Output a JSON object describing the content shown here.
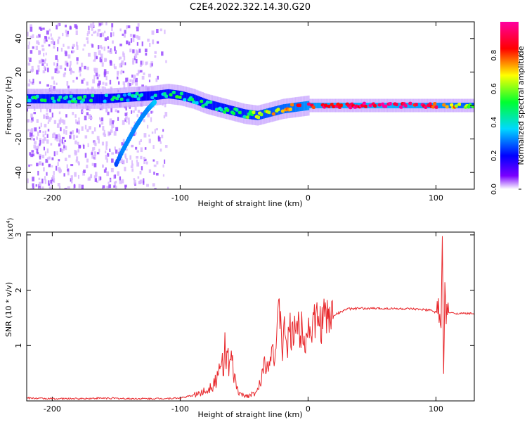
{
  "title": "C2E4.2022.322.14.30.G20",
  "chart_data": [
    {
      "type": "heatmap",
      "xlabel": "Height of straight line (km)",
      "ylabel": "Frequency (Hz)",
      "xlim": [
        -220,
        130
      ],
      "ylim": [
        -50,
        50
      ],
      "xticks": [
        -200,
        -100,
        0,
        100
      ],
      "xtick_labels": [
        "-200",
        "-100",
        "0",
        "100"
      ],
      "yticks": [
        -40,
        -20,
        0,
        20,
        40
      ],
      "ytick_labels": [
        "-40",
        "-20",
        "0",
        "20",
        "40"
      ],
      "colorbar": {
        "label": "Normalized spectral amplitude",
        "range": [
          0,
          1
        ],
        "ticks": [
          0.0,
          0.2,
          0.4,
          0.6,
          0.8
        ],
        "tick_labels": [
          "0.0",
          "0.2",
          "0.4",
          "0.6",
          "0.8"
        ],
        "colors": [
          "#ffffff",
          "#7a00ff",
          "#0000ff",
          "#00d8ff",
          "#00ff30",
          "#ffff00",
          "#ff0000",
          "#ff00a0"
        ]
      },
      "ridge": {
        "x": [
          -220,
          -200,
          -180,
          -160,
          -140,
          -120,
          -110,
          -100,
          -90,
          -80,
          -70,
          -60,
          -50,
          -40,
          -30,
          -20,
          -10,
          0,
          20,
          60,
          100,
          130
        ],
        "freq": [
          4,
          4,
          4,
          4,
          5,
          6,
          7,
          6,
          4,
          1,
          -1,
          -3,
          -5,
          -6,
          -4,
          -2,
          -1,
          0,
          0,
          0,
          0,
          0
        ],
        "amplitude": [
          0.45,
          0.45,
          0.45,
          0.4,
          0.4,
          0.4,
          0.45,
          0.45,
          0.45,
          0.45,
          0.45,
          0.45,
          0.5,
          0.6,
          0.65,
          0.7,
          0.75,
          0.85,
          0.9,
          0.95,
          0.85,
          0.6
        ]
      },
      "branch": {
        "x": [
          -150,
          -145,
          -140,
          -135,
          -130,
          -125,
          -120
        ],
        "freq": [
          -35,
          -27,
          -20,
          -13,
          -7,
          -2,
          2
        ],
        "amplitude": [
          0.25,
          0.3,
          0.3,
          0.3,
          0.3,
          0.3,
          0.35
        ]
      }
    },
    {
      "type": "line",
      "xlabel": "Height of straight line (km)",
      "ylabel": "SNR (10 * v/v)",
      "y_multiplier": "(x10",
      "y_multiplier_exp": "4",
      "y_multiplier_close": ")",
      "xlim": [
        -220,
        130
      ],
      "ylim": [
        0,
        3.05
      ],
      "xticks": [
        -200,
        -100,
        0,
        100
      ],
      "xtick_labels": [
        "-200",
        "-100",
        "0",
        "100"
      ],
      "yticks": [
        1,
        2,
        3
      ],
      "ytick_labels": [
        "1",
        "2",
        "3"
      ],
      "color": "#e8262a",
      "series": [
        {
          "x": [
            -220,
            -200,
            -180,
            -160,
            -140,
            -120,
            -100,
            -90,
            -80,
            -75,
            -70,
            -68,
            -66,
            -64,
            -62,
            -60,
            -58,
            -56,
            -54,
            -52,
            -50,
            -45,
            -40,
            -36,
            -34,
            -32,
            -30,
            -28,
            -26,
            -24,
            -22,
            -20,
            -18,
            -16,
            -14,
            -12,
            -10,
            -8,
            -6,
            -4,
            -2,
            0,
            5,
            10,
            15,
            20,
            25,
            30,
            40,
            60,
            80,
            95,
            100,
            102,
            104,
            105,
            106,
            107,
            108,
            110,
            115,
            120,
            130
          ],
          "y": [
            0.05,
            0.04,
            0.04,
            0.05,
            0.04,
            0.04,
            0.05,
            0.1,
            0.18,
            0.3,
            0.45,
            0.6,
            0.8,
            1.0,
            0.55,
            0.7,
            0.45,
            0.25,
            0.15,
            0.1,
            0.1,
            0.1,
            0.15,
            0.45,
            0.75,
            0.6,
            0.9,
            1.0,
            0.8,
            1.2,
            1.7,
            0.9,
            1.3,
            1.0,
            1.25,
            1.1,
            1.55,
            1.3,
            1.2,
            1.4,
            1.15,
            1.3,
            1.4,
            1.45,
            1.5,
            1.55,
            1.6,
            1.66,
            1.67,
            1.67,
            1.66,
            1.64,
            1.6,
            1.75,
            1.2,
            3.05,
            0.45,
            2.0,
            1.55,
            1.6,
            1.58,
            1.58,
            1.58
          ]
        }
      ]
    }
  ]
}
